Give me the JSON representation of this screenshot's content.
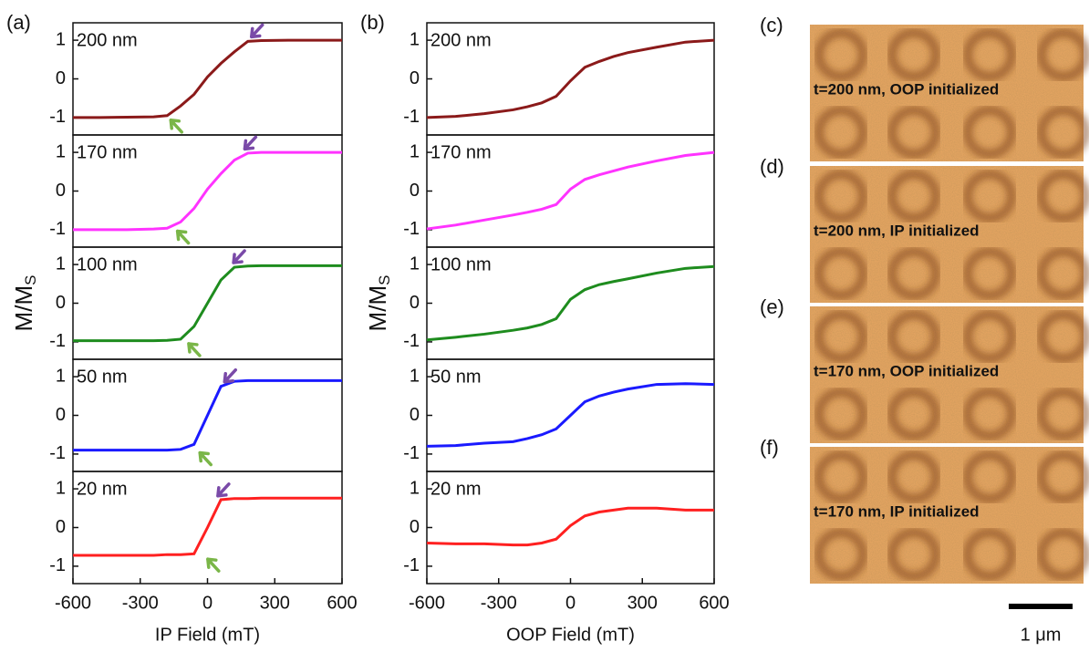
{
  "chart_data": [
    {
      "type": "line",
      "panel_label": "(a)",
      "annotation": "200 nm",
      "x": [
        -600,
        -480,
        -360,
        -240,
        -180,
        -120,
        -60,
        0,
        60,
        120,
        180,
        240,
        360,
        480,
        600
      ],
      "values": [
        -1,
        -1,
        -0.99,
        -0.98,
        -0.95,
        -0.7,
        -0.4,
        0.05,
        0.4,
        0.7,
        0.97,
        0.99,
        1,
        1,
        1
      ],
      "color": "#8b1a1a",
      "xlim": [
        -600,
        600
      ],
      "ylim": [
        -1.45,
        1.45
      ],
      "yticks": [
        -1,
        0,
        1
      ],
      "arrows": [
        {
          "x": -180,
          "y": -0.95,
          "color": "#7ab648"
        },
        {
          "x": 180,
          "y": 0.97,
          "color": "#7a4aa8"
        }
      ]
    },
    {
      "type": "line",
      "annotation": "170 nm",
      "x": [
        -600,
        -480,
        -360,
        -240,
        -180,
        -120,
        -60,
        0,
        60,
        120,
        180,
        240,
        360,
        480,
        600
      ],
      "values": [
        -1,
        -1,
        -1,
        -0.98,
        -0.96,
        -0.8,
        -0.45,
        0.05,
        0.45,
        0.8,
        0.98,
        1,
        1,
        1,
        1
      ],
      "color": "#ff33ff",
      "xlim": [
        -600,
        600
      ],
      "ylim": [
        -1.45,
        1.45
      ],
      "yticks": [
        -1,
        0,
        1
      ],
      "arrows": [
        {
          "x": -150,
          "y": -0.92,
          "color": "#7ab648"
        },
        {
          "x": 150,
          "y": 0.97,
          "color": "#7a4aa8"
        }
      ]
    },
    {
      "type": "line",
      "annotation": "100 nm",
      "ylabel": {
        "text": "M/M",
        "subscript": "S"
      },
      "x": [
        -600,
        -480,
        -360,
        -240,
        -180,
        -120,
        -60,
        0,
        60,
        120,
        180,
        240,
        360,
        480,
        600
      ],
      "values": [
        -0.97,
        -0.97,
        -0.97,
        -0.97,
        -0.96,
        -0.93,
        -0.6,
        0,
        0.6,
        0.93,
        0.96,
        0.97,
        0.97,
        0.97,
        0.97
      ],
      "color": "#1e8c1e",
      "xlim": [
        -600,
        600
      ],
      "ylim": [
        -1.45,
        1.45
      ],
      "yticks": [
        -1,
        0,
        1
      ],
      "arrows": [
        {
          "x": -100,
          "y": -0.93,
          "color": "#7ab648"
        },
        {
          "x": 100,
          "y": 0.93,
          "color": "#7a4aa8"
        }
      ]
    },
    {
      "type": "line",
      "annotation": "50 nm",
      "x": [
        -600,
        -480,
        -360,
        -240,
        -180,
        -120,
        -60,
        0,
        60,
        120,
        180,
        240,
        360,
        480,
        600
      ],
      "values": [
        -0.9,
        -0.9,
        -0.9,
        -0.9,
        -0.9,
        -0.88,
        -0.75,
        0,
        0.75,
        0.88,
        0.9,
        0.9,
        0.9,
        0.9,
        0.9
      ],
      "color": "#1a1aff",
      "xlim": [
        -600,
        600
      ],
      "ylim": [
        -1.45,
        1.45
      ],
      "yticks": [
        -1,
        0,
        1
      ],
      "arrows": [
        {
          "x": -50,
          "y": -0.85,
          "color": "#7ab648"
        },
        {
          "x": 60,
          "y": 0.75,
          "color": "#7a4aa8"
        }
      ]
    },
    {
      "type": "line",
      "annotation": "20 nm",
      "xlabel": "IP Field (mT)",
      "x": [
        -600,
        -480,
        -360,
        -240,
        -180,
        -120,
        -60,
        0,
        60,
        120,
        180,
        240,
        360,
        480,
        600
      ],
      "values": [
        -0.72,
        -0.72,
        -0.72,
        -0.72,
        -0.7,
        -0.7,
        -0.68,
        0,
        0.72,
        0.75,
        0.75,
        0.76,
        0.76,
        0.76,
        0.76
      ],
      "color": "#ff2020",
      "xlim": [
        -600,
        600
      ],
      "xticks": [
        -600,
        -300,
        0,
        300,
        600
      ],
      "ylim": [
        -1.45,
        1.45
      ],
      "yticks": [
        -1,
        0,
        1
      ],
      "arrows": [
        {
          "x": -15,
          "y": -0.7,
          "color": "#7ab648"
        },
        {
          "x": 30,
          "y": 0.7,
          "color": "#7a4aa8"
        }
      ]
    },
    {
      "type": "line",
      "panel_label": "(b)",
      "annotation": "200 nm",
      "x": [
        -600,
        -480,
        -360,
        -240,
        -180,
        -120,
        -60,
        0,
        60,
        120,
        180,
        240,
        360,
        480,
        600
      ],
      "values": [
        -1,
        -0.97,
        -0.9,
        -0.8,
        -0.72,
        -0.62,
        -0.45,
        -0.05,
        0.3,
        0.45,
        0.58,
        0.68,
        0.82,
        0.95,
        1
      ],
      "color": "#8b1a1a",
      "xlim": [
        -600,
        600
      ],
      "ylim": [
        -1.45,
        1.45
      ],
      "yticks": [
        -1,
        0,
        1
      ]
    },
    {
      "type": "line",
      "annotation": "170 nm",
      "x": [
        -600,
        -480,
        -360,
        -240,
        -180,
        -120,
        -60,
        0,
        60,
        120,
        180,
        240,
        360,
        480,
        600
      ],
      "values": [
        -0.98,
        -0.88,
        -0.75,
        -0.62,
        -0.55,
        -0.47,
        -0.35,
        0.05,
        0.3,
        0.42,
        0.52,
        0.62,
        0.78,
        0.92,
        1
      ],
      "color": "#ff33ff",
      "xlim": [
        -600,
        600
      ],
      "ylim": [
        -1.45,
        1.45
      ],
      "yticks": [
        -1,
        0,
        1
      ]
    },
    {
      "type": "line",
      "annotation": "100 nm",
      "ylabel": {
        "text": "M/M",
        "subscript": "S"
      },
      "x": [
        -600,
        -480,
        -360,
        -240,
        -180,
        -120,
        -60,
        0,
        60,
        120,
        180,
        240,
        360,
        480,
        600
      ],
      "values": [
        -0.95,
        -0.88,
        -0.8,
        -0.7,
        -0.64,
        -0.55,
        -0.4,
        0.1,
        0.35,
        0.48,
        0.56,
        0.63,
        0.78,
        0.9,
        0.95
      ],
      "color": "#1e8c1e",
      "xlim": [
        -600,
        600
      ],
      "ylim": [
        -1.45,
        1.45
      ],
      "yticks": [
        -1,
        0,
        1
      ]
    },
    {
      "type": "line",
      "annotation": "50 nm",
      "x": [
        -600,
        -480,
        -360,
        -240,
        -180,
        -120,
        -60,
        0,
        60,
        120,
        180,
        240,
        360,
        480,
        600
      ],
      "values": [
        -0.8,
        -0.78,
        -0.72,
        -0.68,
        -0.6,
        -0.5,
        -0.35,
        0,
        0.35,
        0.5,
        0.6,
        0.68,
        0.8,
        0.82,
        0.8
      ],
      "color": "#1a1aff",
      "xlim": [
        -600,
        600
      ],
      "ylim": [
        -1.45,
        1.45
      ],
      "yticks": [
        -1,
        0,
        1
      ]
    },
    {
      "type": "line",
      "annotation": "20 nm",
      "xlabel": "OOP Field (mT)",
      "x": [
        -600,
        -480,
        -360,
        -240,
        -180,
        -120,
        -60,
        0,
        60,
        120,
        180,
        240,
        360,
        480,
        600
      ],
      "values": [
        -0.4,
        -0.42,
        -0.42,
        -0.45,
        -0.45,
        -0.4,
        -0.3,
        0.05,
        0.3,
        0.4,
        0.45,
        0.5,
        0.5,
        0.45,
        0.45
      ],
      "color": "#ff2020",
      "xlim": [
        -600,
        600
      ],
      "xticks": [
        -600,
        -300,
        0,
        300,
        600
      ],
      "ylim": [
        -1.45,
        1.45
      ],
      "yticks": [
        -1,
        0,
        1
      ]
    }
  ],
  "images": [
    {
      "label": "(c)",
      "caption": "t=200 nm, OOP initialized"
    },
    {
      "label": "(d)",
      "caption": "t=200 nm, IP initialized"
    },
    {
      "label": "(e)",
      "caption": "t=170 nm, OOP initialized"
    },
    {
      "label": "(f)",
      "caption": "t=170 nm, IP initialized"
    }
  ],
  "scale_bar": "1 μm"
}
